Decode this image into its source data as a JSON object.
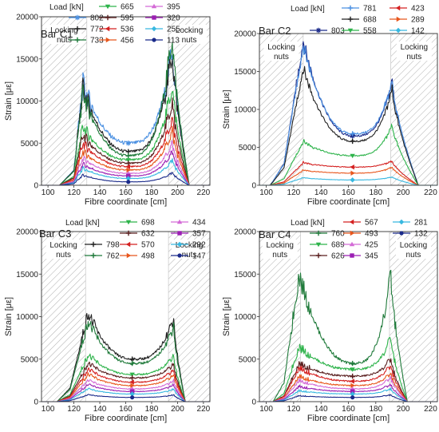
{
  "chart_data": [
    {
      "type": "line",
      "title": "Bar C1",
      "xlabel": "Fibre coordinate [cm]",
      "ylabel": "Strain [με]",
      "xlim": [
        95,
        225
      ],
      "ylim": [
        0,
        20000
      ],
      "xticks": [
        100,
        120,
        140,
        160,
        180,
        200,
        220
      ],
      "yticks": [
        0,
        5000,
        10000,
        15000,
        20000
      ],
      "grid": false,
      "legend_title": "Load [kN]",
      "legend_placement": "top",
      "zones": [
        {
          "label": "Locking\nnuts",
          "x0": 95,
          "x1": 130
        },
        {
          "label": "Locking\nnuts",
          "x0": 193,
          "x1": 225
        }
      ],
      "profile": {
        "start": 109,
        "rise": 120,
        "peak1": 127,
        "peak2": 196,
        "end": 209,
        "mid": 162
      },
      "series": [
        {
          "name": "802",
          "color": "#4a90e2",
          "mid": 5000,
          "peak": 12000,
          "end": 16500,
          "marker": "star"
        },
        {
          "name": "772",
          "color": "#222222",
          "mid": 4000,
          "peak": 11500,
          "end": 16000,
          "marker": "plus"
        },
        {
          "name": "733",
          "color": "#1f7a3a",
          "mid": 3500,
          "peak": 11000,
          "end": 18000,
          "marker": "plus"
        },
        {
          "name": "665",
          "color": "#2db34a",
          "mid": 3000,
          "peak": 7000,
          "end": 12000,
          "marker": "tri-down"
        },
        {
          "name": "595",
          "color": "#5a1f1f",
          "mid": 2600,
          "peak": 6000,
          "end": 10000,
          "marker": "plus"
        },
        {
          "name": "536",
          "color": "#d42020",
          "mid": 2200,
          "peak": 5000,
          "end": 8000,
          "marker": "tri-left"
        },
        {
          "name": "456",
          "color": "#e8561c",
          "mid": 1800,
          "peak": 4000,
          "end": 6500,
          "marker": "tri-right"
        },
        {
          "name": "395",
          "color": "#d36ad6",
          "mid": 1400,
          "peak": 3200,
          "end": 5000,
          "marker": "tri-up"
        },
        {
          "name": "320",
          "color": "#9b1fb3",
          "mid": 1100,
          "peak": 2500,
          "end": 4000,
          "marker": "square"
        },
        {
          "name": "255",
          "color": "#37b8e0",
          "mid": 800,
          "peak": 2000,
          "end": 3000,
          "marker": "diamond"
        },
        {
          "name": "113",
          "color": "#1a2a8a",
          "mid": 400,
          "peak": 1200,
          "end": 1500,
          "marker": "circle"
        }
      ]
    },
    {
      "type": "line",
      "title": "Bar C2",
      "xlabel": "Fibre coordinate [cm]",
      "ylabel": "Strain [με]",
      "xlim": [
        95,
        225
      ],
      "ylim": [
        0,
        20000
      ],
      "xticks": [
        100,
        120,
        140,
        160,
        180,
        200,
        220
      ],
      "yticks": [
        0,
        5000,
        10000,
        15000,
        20000
      ],
      "grid": false,
      "legend_title": "Load [kN]",
      "legend_placement": "top",
      "zones": [
        {
          "label": "Locking\nnuts",
          "x0": 95,
          "x1": 127
        },
        {
          "label": "Locking\nnuts",
          "x0": 191,
          "x1": 225
        }
      ],
      "profile": {
        "start": 103,
        "rise": 113,
        "peak1": 127,
        "peak2": 192,
        "end": 211,
        "mid": 163
      },
      "series": [
        {
          "name": "803",
          "color": "#1a2a8a",
          "mid": 6500,
          "peak": 19000,
          "end": 13800,
          "marker": "star"
        },
        {
          "name": "781",
          "color": "#4a90e2",
          "mid": 6800,
          "peak": 18500,
          "end": 13800,
          "marker": "plus"
        },
        {
          "name": "688",
          "color": "#222222",
          "mid": 5800,
          "peak": 15500,
          "end": 12800,
          "marker": "plus"
        },
        {
          "name": "558",
          "color": "#2db34a",
          "mid": 3900,
          "peak": 5800,
          "end": 8000,
          "marker": "tri-down"
        },
        {
          "name": "423",
          "color": "#d42020",
          "mid": 2400,
          "peak": 3000,
          "end": 3200,
          "marker": "tri-left"
        },
        {
          "name": "289",
          "color": "#e8561c",
          "mid": 1600,
          "peak": 2000,
          "end": 2400,
          "marker": "tri-right"
        },
        {
          "name": "142",
          "color": "#37b8e0",
          "mid": 700,
          "peak": 1000,
          "end": 1100,
          "marker": "diamond"
        }
      ]
    },
    {
      "type": "line",
      "title": "Bar C3",
      "xlabel": "Fibre coordinate [cm]",
      "ylabel": "Strain [με]",
      "xlim": [
        95,
        225
      ],
      "ylim": [
        0,
        20000
      ],
      "xticks": [
        100,
        120,
        140,
        160,
        180,
        200,
        220
      ],
      "yticks": [
        0,
        5000,
        10000,
        15000,
        20000
      ],
      "grid": false,
      "legend_title": "Load [kN]",
      "legend_placement": "top",
      "zones": [
        {
          "label": "Locking\nnuts",
          "x0": 95,
          "x1": 129
        },
        {
          "label": "Locking\nnuts",
          "x0": 193,
          "x1": 225
        }
      ],
      "profile": {
        "start": 107,
        "rise": 117,
        "peak1": 131,
        "peak2": 197,
        "end": 206,
        "mid": 165
      },
      "series": [
        {
          "name": "798",
          "color": "#222222",
          "mid": 5000,
          "peak": 10500,
          "end": 10000,
          "marker": "plus"
        },
        {
          "name": "762",
          "color": "#1f7a3a",
          "mid": 4500,
          "peak": 9500,
          "end": 9000,
          "marker": "plus"
        },
        {
          "name": "698",
          "color": "#2db34a",
          "mid": 3200,
          "peak": 5500,
          "end": 5500,
          "marker": "tri-down"
        },
        {
          "name": "632",
          "color": "#5a1f1f",
          "mid": 2800,
          "peak": 4500,
          "end": 4500,
          "marker": "plus"
        },
        {
          "name": "570",
          "color": "#d42020",
          "mid": 2300,
          "peak": 3800,
          "end": 3800,
          "marker": "tri-left"
        },
        {
          "name": "498",
          "color": "#e8561c",
          "mid": 1900,
          "peak": 3200,
          "end": 3200,
          "marker": "tri-right"
        },
        {
          "name": "434",
          "color": "#d36ad6",
          "mid": 1500,
          "peak": 2500,
          "end": 2500,
          "marker": "tri-up"
        },
        {
          "name": "357",
          "color": "#9b1fb3",
          "mid": 1200,
          "peak": 2000,
          "end": 2000,
          "marker": "square"
        },
        {
          "name": "292",
          "color": "#37b8e0",
          "mid": 900,
          "peak": 1500,
          "end": 1500,
          "marker": "diamond"
        },
        {
          "name": "147",
          "color": "#1a2a8a",
          "mid": 500,
          "peak": 800,
          "end": 800,
          "marker": "circle"
        }
      ]
    },
    {
      "type": "line",
      "title": "Bar C4",
      "xlabel": "Fibre coordinate [cm]",
      "ylabel": "Strain [με]",
      "xlim": [
        95,
        225
      ],
      "ylim": [
        0,
        20000
      ],
      "xticks": [
        100,
        120,
        140,
        160,
        180,
        200,
        220
      ],
      "yticks": [
        0,
        5000,
        10000,
        15000,
        20000
      ],
      "grid": false,
      "legend_title": "Load [kN]",
      "legend_placement": "top",
      "zones": [
        {
          "label": "Locking\nnuts",
          "x0": 95,
          "x1": 125
        },
        {
          "label": "Locking\nnuts",
          "x0": 190,
          "x1": 225
        }
      ],
      "profile": {
        "start": 105,
        "rise": 113,
        "peak1": 124,
        "peak2": 191,
        "end": 203,
        "mid": 163
      },
      "series": [
        {
          "name": "760",
          "color": "#1f7a3a",
          "mid": 4500,
          "peak": 15000,
          "end": 15000,
          "marker": "plus"
        },
        {
          "name": "689",
          "color": "#2db34a",
          "mid": 3800,
          "peak": 6500,
          "end": 7500,
          "marker": "tri-down"
        },
        {
          "name": "626",
          "color": "#5a1f1f",
          "mid": 3000,
          "peak": 4500,
          "end": 5000,
          "marker": "plus"
        },
        {
          "name": "567",
          "color": "#d42020",
          "mid": 2400,
          "peak": 4000,
          "end": 4200,
          "marker": "tri-left"
        },
        {
          "name": "493",
          "color": "#e8561c",
          "mid": 1900,
          "peak": 3000,
          "end": 3300,
          "marker": "tri-right"
        },
        {
          "name": "425",
          "color": "#d36ad6",
          "mid": 1500,
          "peak": 2500,
          "end": 2800,
          "marker": "tri-up"
        },
        {
          "name": "345",
          "color": "#9b1fb3",
          "mid": 1200,
          "peak": 1800,
          "end": 2000,
          "marker": "square"
        },
        {
          "name": "281",
          "color": "#37b8e0",
          "mid": 900,
          "peak": 1300,
          "end": 1500,
          "marker": "diamond"
        },
        {
          "name": "132",
          "color": "#1a2a8a",
          "mid": 500,
          "peak": 700,
          "end": 800,
          "marker": "circle"
        }
      ]
    }
  ]
}
